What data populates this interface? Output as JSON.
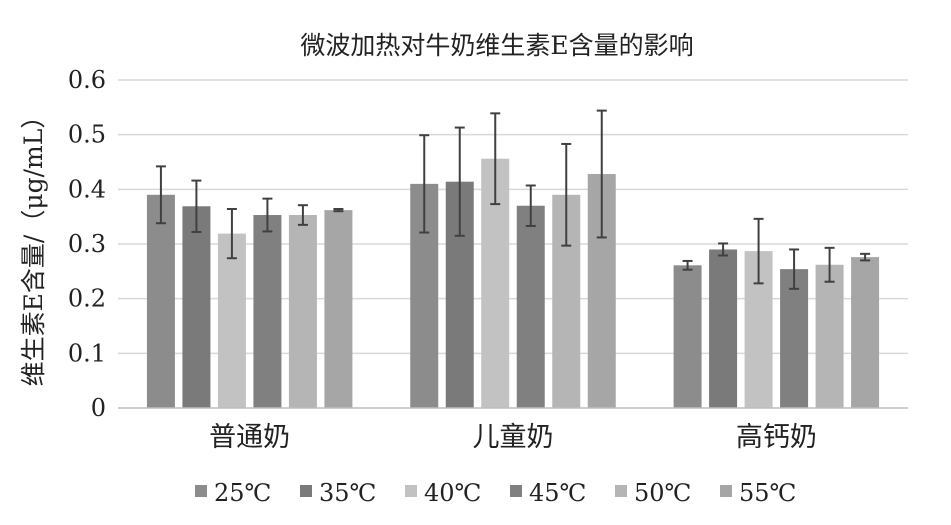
{
  "chart_data": {
    "type": "bar",
    "title": "微波加热对牛奶维生素E含量的影响",
    "xlabel": "",
    "ylabel": "维生素E含量/（μg/mL）",
    "ylim": [
      0,
      0.6
    ],
    "yticks": [
      "0",
      "0.1",
      "0.2",
      "0.3",
      "0.4",
      "0.5",
      "0.6"
    ],
    "grid": true,
    "legend_position": "bottom",
    "categories": [
      "普通奶",
      "儿童奶",
      "高钙奶"
    ],
    "series": [
      {
        "name": "25℃",
        "color": "#8c8c8c",
        "values": [
          0.39,
          0.41,
          0.261
        ],
        "error": [
          0.052,
          0.089,
          0.008
        ]
      },
      {
        "name": "35℃",
        "color": "#7a7a7a",
        "values": [
          0.369,
          0.414,
          0.29
        ],
        "error": [
          0.047,
          0.099,
          0.011
        ]
      },
      {
        "name": "40℃",
        "color": "#c2c2c2",
        "values": [
          0.319,
          0.456,
          0.287
        ],
        "error": [
          0.045,
          0.083,
          0.059
        ]
      },
      {
        "name": "45℃",
        "color": "#808080",
        "values": [
          0.353,
          0.37,
          0.254
        ],
        "error": [
          0.03,
          0.037,
          0.036
        ]
      },
      {
        "name": "50℃",
        "color": "#b5b5b5",
        "values": [
          0.353,
          0.39,
          0.262
        ],
        "error": [
          0.018,
          0.093,
          0.031
        ]
      },
      {
        "name": "55℃",
        "color": "#a6a6a6",
        "values": [
          0.362,
          0.428,
          0.276
        ],
        "error": [
          0.002,
          0.116,
          0.006
        ]
      }
    ]
  }
}
